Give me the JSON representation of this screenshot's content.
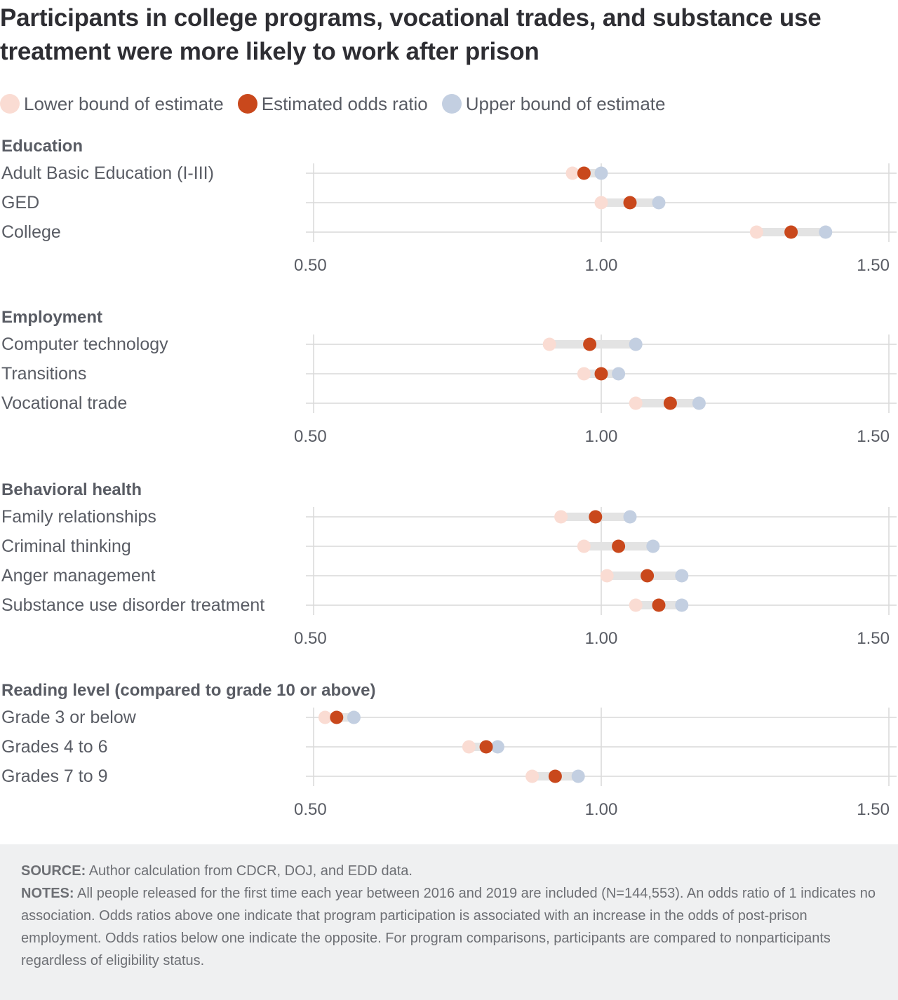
{
  "title": "Participants in college programs, vocational trades, and substance use treatment were more likely to work after prison",
  "legend": [
    {
      "label": "Lower bound of estimate",
      "color": "#fadcd3"
    },
    {
      "label": "Estimated odds ratio",
      "color": "#c9481c"
    },
    {
      "label": "Upper bound of estimate",
      "color": "#c3cfe1"
    }
  ],
  "colors": {
    "lower": "#fadcd3",
    "estimate": "#c9481c",
    "upper": "#c3cfe1",
    "range_bar": "#e3e3e3",
    "grid": "#d9d9d9"
  },
  "chart_data": {
    "type": "scatter",
    "subtype": "dot-range",
    "xlim": [
      0.5,
      1.5
    ],
    "tick_values": [
      0.5,
      1.0,
      1.5
    ],
    "tick_labels": [
      "0.50",
      "1.00",
      "1.50"
    ],
    "panels": [
      {
        "title": "Education",
        "rows": [
          {
            "label": "Adult Basic Education (I-III)",
            "lower": 0.95,
            "estimate": 0.97,
            "upper": 1.0
          },
          {
            "label": "GED",
            "lower": 1.0,
            "estimate": 1.05,
            "upper": 1.1
          },
          {
            "label": "College",
            "lower": 1.27,
            "estimate": 1.33,
            "upper": 1.39
          }
        ]
      },
      {
        "title": "Employment",
        "rows": [
          {
            "label": "Computer technology",
            "lower": 0.91,
            "estimate": 0.98,
            "upper": 1.06
          },
          {
            "label": "Transitions",
            "lower": 0.97,
            "estimate": 1.0,
            "upper": 1.03
          },
          {
            "label": "Vocational trade",
            "lower": 1.06,
            "estimate": 1.12,
            "upper": 1.17
          }
        ]
      },
      {
        "title": "Behavioral health",
        "rows": [
          {
            "label": "Family relationships",
            "lower": 0.93,
            "estimate": 0.99,
            "upper": 1.05
          },
          {
            "label": "Criminal thinking",
            "lower": 0.97,
            "estimate": 1.03,
            "upper": 1.09
          },
          {
            "label": "Anger management",
            "lower": 1.01,
            "estimate": 1.08,
            "upper": 1.14
          },
          {
            "label": "Substance use disorder treatment",
            "lower": 1.06,
            "estimate": 1.1,
            "upper": 1.14
          }
        ]
      },
      {
        "title": "Reading level (compared to grade 10 or above)",
        "rows": [
          {
            "label": "Grade 3 or below",
            "lower": 0.52,
            "estimate": 0.54,
            "upper": 0.57
          },
          {
            "label": "Grades 4 to 6",
            "lower": 0.77,
            "estimate": 0.8,
            "upper": 0.82
          },
          {
            "label": "Grades 7 to 9",
            "lower": 0.88,
            "estimate": 0.92,
            "upper": 0.96
          }
        ]
      }
    ]
  },
  "footer": {
    "source_label": "SOURCE:",
    "source_text": "Author calculation from CDCR, DOJ, and EDD data.",
    "notes_label": "NOTES:",
    "notes_text": "All people released for the first time each year between 2016 and 2019 are included (N=144,553). An odds ratio of 1 indicates no association. Odds ratios above one indicate that program participation is associated with an increase in the odds of post-prison employment. Odds ratios below one indicate the opposite. For program comparisons, participants are compared to nonparticipants regardless of eligibility status."
  }
}
